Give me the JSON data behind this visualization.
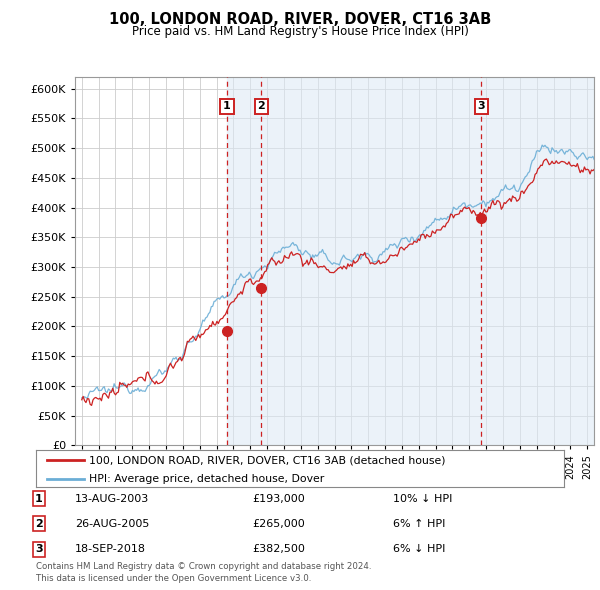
{
  "title": "100, LONDON ROAD, RIVER, DOVER, CT16 3AB",
  "subtitle": "Price paid vs. HM Land Registry's House Price Index (HPI)",
  "ylim": [
    0,
    620000
  ],
  "yticks": [
    0,
    50000,
    100000,
    150000,
    200000,
    250000,
    300000,
    350000,
    400000,
    450000,
    500000,
    550000,
    600000
  ],
  "legend_line1": "100, LONDON ROAD, RIVER, DOVER, CT16 3AB (detached house)",
  "legend_line2": "HPI: Average price, detached house, Dover",
  "transactions": [
    {
      "num": 1,
      "date": "13-AUG-2003",
      "price": 193000,
      "price_str": "£193,000",
      "pct": "10%",
      "dir": "↓",
      "year": 2003.62
    },
    {
      "num": 2,
      "date": "26-AUG-2005",
      "price": 265000,
      "price_str": "£265,000",
      "pct": "6%",
      "dir": "↑",
      "year": 2005.65
    },
    {
      "num": 3,
      "date": "18-SEP-2018",
      "price": 382500,
      "price_str": "£382,500",
      "pct": "6%",
      "dir": "↓",
      "year": 2018.71
    }
  ],
  "footnote1": "Contains HM Land Registry data © Crown copyright and database right 2024.",
  "footnote2": "This data is licensed under the Open Government Licence v3.0.",
  "hpi_color": "#6baed6",
  "price_color": "#cc2222",
  "grid_color": "#cccccc",
  "background_color": "#ffffff",
  "shading_color": "#dce9f5",
  "xlim_left": 1994.6,
  "xlim_right": 2025.4
}
